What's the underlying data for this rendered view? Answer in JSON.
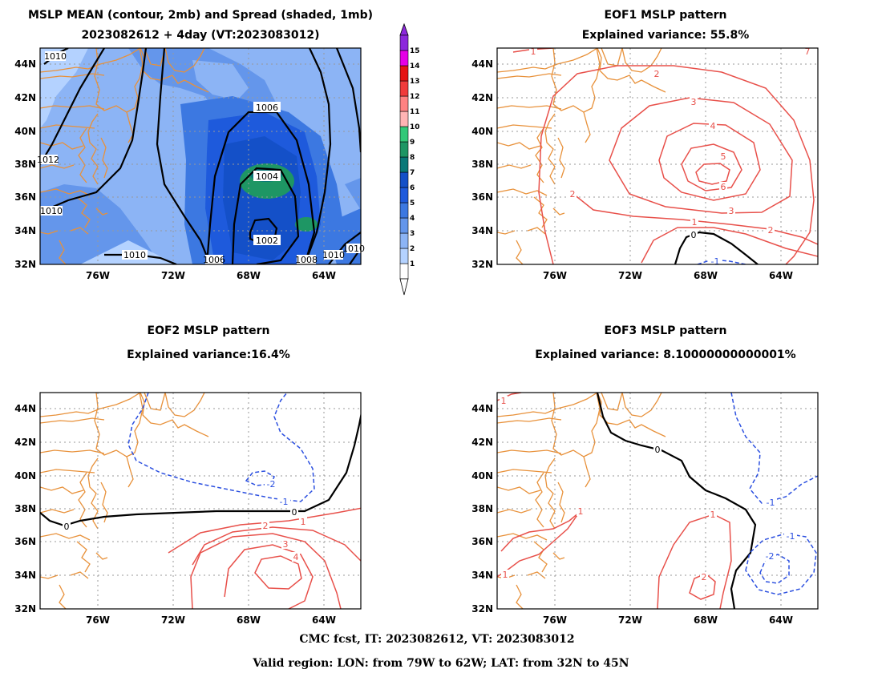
{
  "panels": [
    {
      "id": "mean",
      "title_line1": "MSLP MEAN (contour, 2mb) and Spread (shaded, 1mb)",
      "title_line2": "2023082612 + 4day (VT:2023083012)",
      "contour_labels": [
        "1010",
        "1012",
        "1010",
        "1010",
        "1006",
        "1004",
        "1002",
        "1008",
        "1010",
        "1010",
        "1006",
        "1010"
      ]
    },
    {
      "id": "eof1",
      "title_line1": "EOF1 MSLP pattern",
      "title_line2": "Explained variance: 55.8%",
      "contour_labels": [
        "1",
        "2",
        "3",
        "4",
        "5",
        "6",
        "3",
        "2",
        "2",
        "1",
        "0",
        "-1",
        "7"
      ]
    },
    {
      "id": "eof2",
      "title_line1": "EOF2 MSLP pattern",
      "title_line2": "Explained variance:16.4%",
      "contour_labels": [
        "-1",
        "-2",
        "0",
        "0",
        "1",
        "2",
        "3",
        "4"
      ]
    },
    {
      "id": "eof3",
      "title_line1": "EOF3 MSLP pattern",
      "title_line2": "Explained variance: 8.10000000000001%",
      "contour_labels": [
        "1",
        "0",
        "-1",
        "1",
        "-1",
        "-2",
        "1",
        "2",
        "1"
      ]
    }
  ],
  "axes": {
    "y_ticks": [
      "44N",
      "42N",
      "40N",
      "38N",
      "36N",
      "34N",
      "32N"
    ],
    "x_ticks": [
      "76W",
      "72W",
      "68W",
      "64W"
    ]
  },
  "colorbar": {
    "ticks": [
      "1",
      "2",
      "3",
      "4",
      "5",
      "6",
      "7",
      "8",
      "9",
      "10",
      "11",
      "12",
      "13",
      "14",
      "15"
    ],
    "colors": [
      "#ffffff",
      "#b4d2ff",
      "#8cb4f5",
      "#6496eb",
      "#3c78e1",
      "#1e5adc",
      "#1450c8",
      "#0a7878",
      "#1e9664",
      "#32c878",
      "#ffb4b4",
      "#ff8282",
      "#f03c3c",
      "#e61414",
      "#e600e6",
      "#8c28dc"
    ]
  },
  "footer": {
    "line1": "CMC fcst, IT: 2023082612, VT: 2023083012",
    "line2": "Valid region: LON: from 79W to 62W; LAT: from 32N to 45N"
  },
  "colors": {
    "coast": "#e8913a",
    "positive": "#e8504a",
    "negative": "#2c50e0",
    "zero": "#000000",
    "mean_contour": "#000000",
    "grid": "#999999"
  }
}
